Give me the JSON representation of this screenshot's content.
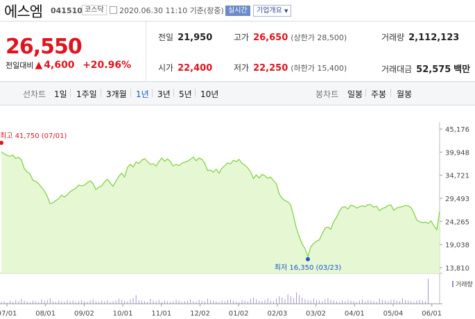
{
  "header": {
    "name": "에스엠",
    "code": "041510",
    "market": "코스닥",
    "datetime": "2020.06.30 11:10 기준(장중)",
    "live": "실시간",
    "corp_info": "기업개요"
  },
  "quote": {
    "price": "26,550",
    "change_label": "전일대비",
    "change_arrow": "▲",
    "change": "4,600",
    "change_pct": "+20.96%",
    "prev_label": "전일",
    "prev": "21,950",
    "high_label": "고가",
    "high": "26,650",
    "upper_limit": "(상한가 28,500)",
    "volume_label": "거래량",
    "volume": "2,112,123",
    "open_label": "시가",
    "open": "22,400",
    "low_label": "저가",
    "low": "22,250",
    "lower_limit": "(하한가 15,400)",
    "amount_label": "거래대금",
    "amount": "52,575",
    "amount_unit": "백만"
  },
  "tabs": {
    "line_label": "선차트",
    "line": [
      "1일",
      "1주일",
      "3개월",
      "1년",
      "3년",
      "5년",
      "10년"
    ],
    "selected": "1년",
    "candle_label": "봉차트",
    "candle": [
      "일봉",
      "주봉",
      "월봉"
    ]
  },
  "chart_data": {
    "type": "area",
    "ylim": [
      13810,
      45176
    ],
    "y_ticks": [
      "45,176",
      "39,948",
      "34,721",
      "29,493",
      "24,265",
      "19,038",
      "13,810"
    ],
    "x_ticks": [
      "07/01",
      "08/01",
      "09/02",
      "10/01",
      "11/01",
      "12/02",
      "01/02",
      "02/03",
      "03/02",
      "04/01",
      "05/04",
      "06/01"
    ],
    "max_label": "최고 41,750 (07/01)",
    "min_label": "최저 16,350 (03/23)",
    "volume_label": "거래량",
    "colors": {
      "line": "#7bcf3b",
      "fill": "#e6f7d4",
      "marker_high": "#e1141e",
      "marker_low": "#1a56c9"
    },
    "price": [
      40000,
      39600,
      39200,
      39000,
      39300,
      38500,
      38800,
      38200,
      36200,
      35500,
      35000,
      33600,
      33300,
      32800,
      32000,
      31200,
      30000,
      28300,
      28500,
      29000,
      29400,
      30200,
      29800,
      30300,
      31000,
      31400,
      31800,
      32500,
      32300,
      32500,
      33000,
      33500,
      32800,
      31500,
      32000,
      32300,
      33200,
      33800,
      33000,
      32200,
      33400,
      34500,
      35200,
      34300,
      36500,
      37200,
      36600,
      37700,
      37400,
      38100,
      38500,
      37800,
      37200,
      37300,
      36800,
      37800,
      38600,
      37900,
      38400,
      37800,
      36800,
      37200,
      36900,
      37400,
      37700,
      37900,
      38300,
      38800,
      38000,
      38600,
      38300,
      37400,
      35800,
      35900,
      35400,
      36100,
      35200,
      36300,
      36900,
      37500,
      37300,
      38100,
      37800,
      38300,
      37400,
      37000,
      36400,
      35500,
      34000,
      34800,
      34100,
      34900,
      34600,
      34000,
      34300,
      33500,
      32800,
      30500,
      29500,
      29000,
      28700,
      28000,
      25500,
      22700,
      20800,
      19200,
      18100,
      16350,
      18500,
      19300,
      19800,
      20100,
      21500,
      22800,
      23000,
      22500,
      24200,
      25200,
      26600,
      27500,
      27600,
      27100,
      27900,
      27800,
      27300,
      27600,
      27800,
      27600,
      28100,
      28000,
      27500,
      27700,
      26700,
      27200,
      27400,
      27900,
      28000,
      26800,
      27300,
      27500,
      27600,
      27900,
      27800,
      27400,
      26200,
      24600,
      24200,
      24000,
      24100,
      23800,
      24400,
      23300,
      22400,
      26550
    ],
    "volume": [
      3,
      4,
      2,
      5,
      3,
      6,
      4,
      8,
      5,
      4,
      3,
      5,
      4,
      3,
      7,
      5,
      6,
      9,
      4,
      3,
      5,
      4,
      3,
      6,
      4,
      5,
      3,
      4,
      6,
      4,
      3,
      5,
      7,
      4,
      3,
      5,
      4,
      6,
      3,
      4,
      5,
      8,
      6,
      5,
      4,
      7,
      9,
      14,
      6,
      5,
      4,
      3,
      8,
      5,
      4,
      6,
      3,
      5,
      4,
      3,
      4,
      6,
      5,
      3,
      4,
      5,
      7,
      4,
      3,
      6,
      5,
      4,
      8,
      6,
      5,
      4,
      3,
      5,
      4,
      6,
      7,
      5,
      4,
      3,
      6,
      5,
      4,
      8,
      10,
      7,
      5,
      4,
      6,
      9,
      5,
      4,
      8,
      12,
      10,
      7,
      15,
      12,
      9,
      18,
      14,
      10,
      7,
      6,
      5,
      8,
      6,
      5,
      4,
      7,
      9,
      6,
      5,
      4,
      3,
      5,
      4,
      6,
      5,
      4,
      3,
      5,
      7,
      4,
      6,
      5,
      4,
      3,
      8,
      6,
      5,
      4,
      6,
      7,
      5,
      4,
      9,
      6,
      5,
      4,
      3,
      5,
      6,
      5,
      4,
      40
    ]
  }
}
